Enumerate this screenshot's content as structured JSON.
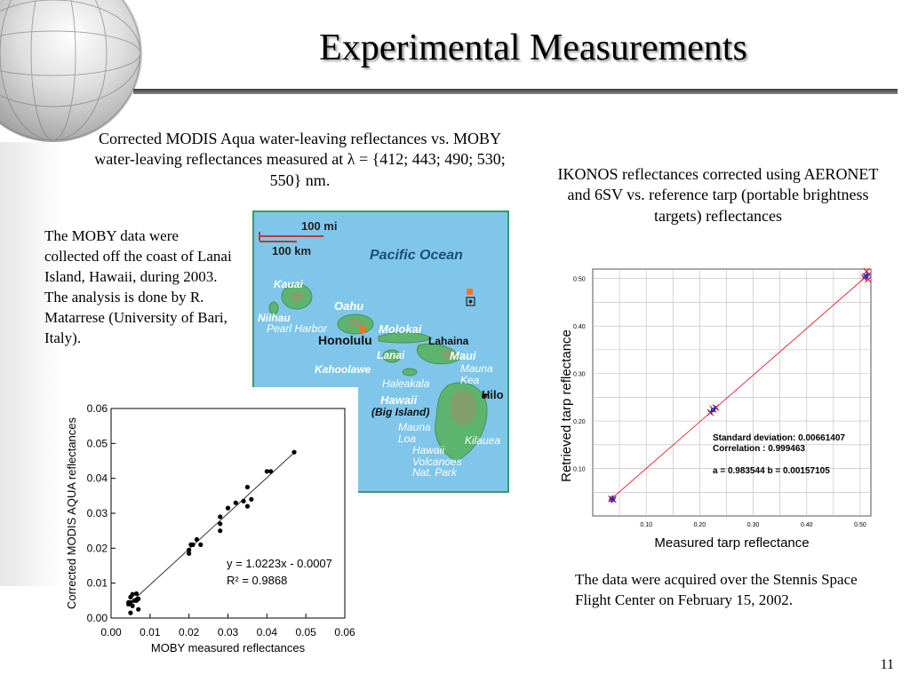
{
  "slide": {
    "title": "Experimental Measurements",
    "page_number": "11",
    "modis_caption": "Corrected MODIS Aqua water-leaving reflectances vs. MOBY water-leaving reflectances measured at λ = {412; 443; 490; 530; 550} nm.",
    "ikonos_caption": "IKONOS reflectances corrected using AERONET and 6SV vs. reference tarp (portable brightness targets) reflectances",
    "moby_note_1": "The MOBY data were collected off the coast of Lanai Island, Hawaii, during 2003.",
    "moby_note_2": "The analysis is done by R. Matarrese (University of Bari, Italy).",
    "stennis_note": "The data were acquired over the Stennis Space Flight Center on February 15, 2002."
  },
  "map": {
    "scale_mi": "100 mi",
    "scale_km": "100 km",
    "ocean": "Pacific Ocean",
    "kauai": "Kauai",
    "niihau": "Niihau",
    "oahu": "Oahu",
    "pearl_harbor": "Pearl Harbor",
    "honolulu": "Honolulu",
    "molokai": "Molokai",
    "lanai": "Lanai",
    "lahaina": "Lahaina",
    "maui": "Maui",
    "kahoolawe": "Kahoolawe",
    "haleakala": "Haleakala",
    "mauna_kea": "Mauna Kea",
    "hawaii": "Hawaii",
    "big_island": "(Big Island)",
    "hilo": "Hilo",
    "mauna_loa": "Mauna Loa",
    "kilauea": "Kilauea",
    "volcanoes": "Hawaii Volcanoes Nat. Park",
    "colors": {
      "ocean": "#7fc6ea",
      "land": "#5bb56e",
      "highland": "#8a9a6a",
      "marker": "#e8782a"
    }
  },
  "chart_data": [
    {
      "type": "scatter",
      "xlabel": "MOBY measured reflectances",
      "ylabel": "Corrected MODIS AQUA reflectances",
      "xlim": [
        0.0,
        0.06
      ],
      "ylim": [
        0.0,
        0.06
      ],
      "x_ticks": [
        "0.00",
        "0.01",
        "0.02",
        "0.03",
        "0.04",
        "0.05",
        "0.06"
      ],
      "y_ticks": [
        "0.00",
        "0.01",
        "0.02",
        "0.03",
        "0.04",
        "0.05",
        "0.06"
      ],
      "fit": {
        "slope": 1.0223,
        "intercept": -0.0007,
        "x_range": [
          0.004,
          0.047
        ]
      },
      "annotation_eq": "y = 1.0223x - 0.0007",
      "annotation_r2": "R² = 0.9868",
      "points": [
        [
          0.0045,
          0.004
        ],
        [
          0.005,
          0.0045
        ],
        [
          0.005,
          0.006
        ],
        [
          0.0055,
          0.0035
        ],
        [
          0.006,
          0.005
        ],
        [
          0.0045,
          0.0045
        ],
        [
          0.0065,
          0.007
        ],
        [
          0.007,
          0.0055
        ],
        [
          0.005,
          0.0015
        ],
        [
          0.007,
          0.0025
        ],
        [
          0.0055,
          0.0068
        ],
        [
          0.0065,
          0.005
        ],
        [
          0.02,
          0.0185
        ],
        [
          0.02,
          0.0195
        ],
        [
          0.0205,
          0.021
        ],
        [
          0.021,
          0.021
        ],
        [
          0.022,
          0.0225
        ],
        [
          0.023,
          0.021
        ],
        [
          0.028,
          0.025
        ],
        [
          0.028,
          0.027
        ],
        [
          0.028,
          0.029
        ],
        [
          0.03,
          0.0315
        ],
        [
          0.032,
          0.033
        ],
        [
          0.034,
          0.0335
        ],
        [
          0.035,
          0.0375
        ],
        [
          0.035,
          0.032
        ],
        [
          0.036,
          0.034
        ],
        [
          0.04,
          0.042
        ],
        [
          0.041,
          0.042
        ],
        [
          0.047,
          0.0475
        ]
      ],
      "colors": {
        "points": "#000000",
        "fit": "#333333"
      }
    },
    {
      "type": "scatter",
      "xlabel": "Measured tarp reflectance",
      "ylabel": "Retrieved tarp reflectance",
      "xlim": [
        0.0,
        0.52
      ],
      "ylim": [
        0.0,
        0.52
      ],
      "x_ticks": [
        "0.10",
        "0.20",
        "0.30",
        "0.40",
        "0.50"
      ],
      "y_ticks": [
        "0.10",
        "0.20",
        "0.30",
        "0.40",
        "0.50"
      ],
      "fit": {
        "slope": 0.983544,
        "intercept": 0.00157105,
        "x_range": [
          0.035,
          0.52
        ]
      },
      "stats_line1": "Standard deviation: 0.00661407",
      "stats_line2": "Correlation      : 0.999463",
      "stats_line3": "a  = 0.983544  b = 0.00157105",
      "series": [
        {
          "marker": "x",
          "color": "#e0202a",
          "points": [
            [
              0.035,
              0.036
            ],
            [
              0.038,
              0.035
            ],
            [
              0.22,
              0.218
            ],
            [
              0.225,
              0.225
            ],
            [
              0.23,
              0.228
            ],
            [
              0.51,
              0.505
            ],
            [
              0.512,
              0.515
            ],
            [
              0.515,
              0.498
            ],
            [
              0.508,
              0.502
            ]
          ]
        },
        {
          "marker": "+",
          "color": "#1a2ad0",
          "points": [
            [
              0.036,
              0.034
            ],
            [
              0.037,
              0.037
            ],
            [
              0.222,
              0.22
            ],
            [
              0.228,
              0.226
            ],
            [
              0.513,
              0.507
            ],
            [
              0.51,
              0.503
            ]
          ]
        }
      ],
      "colors": {
        "fit": "#e0202a",
        "grid": "#bbbbbb"
      }
    }
  ]
}
